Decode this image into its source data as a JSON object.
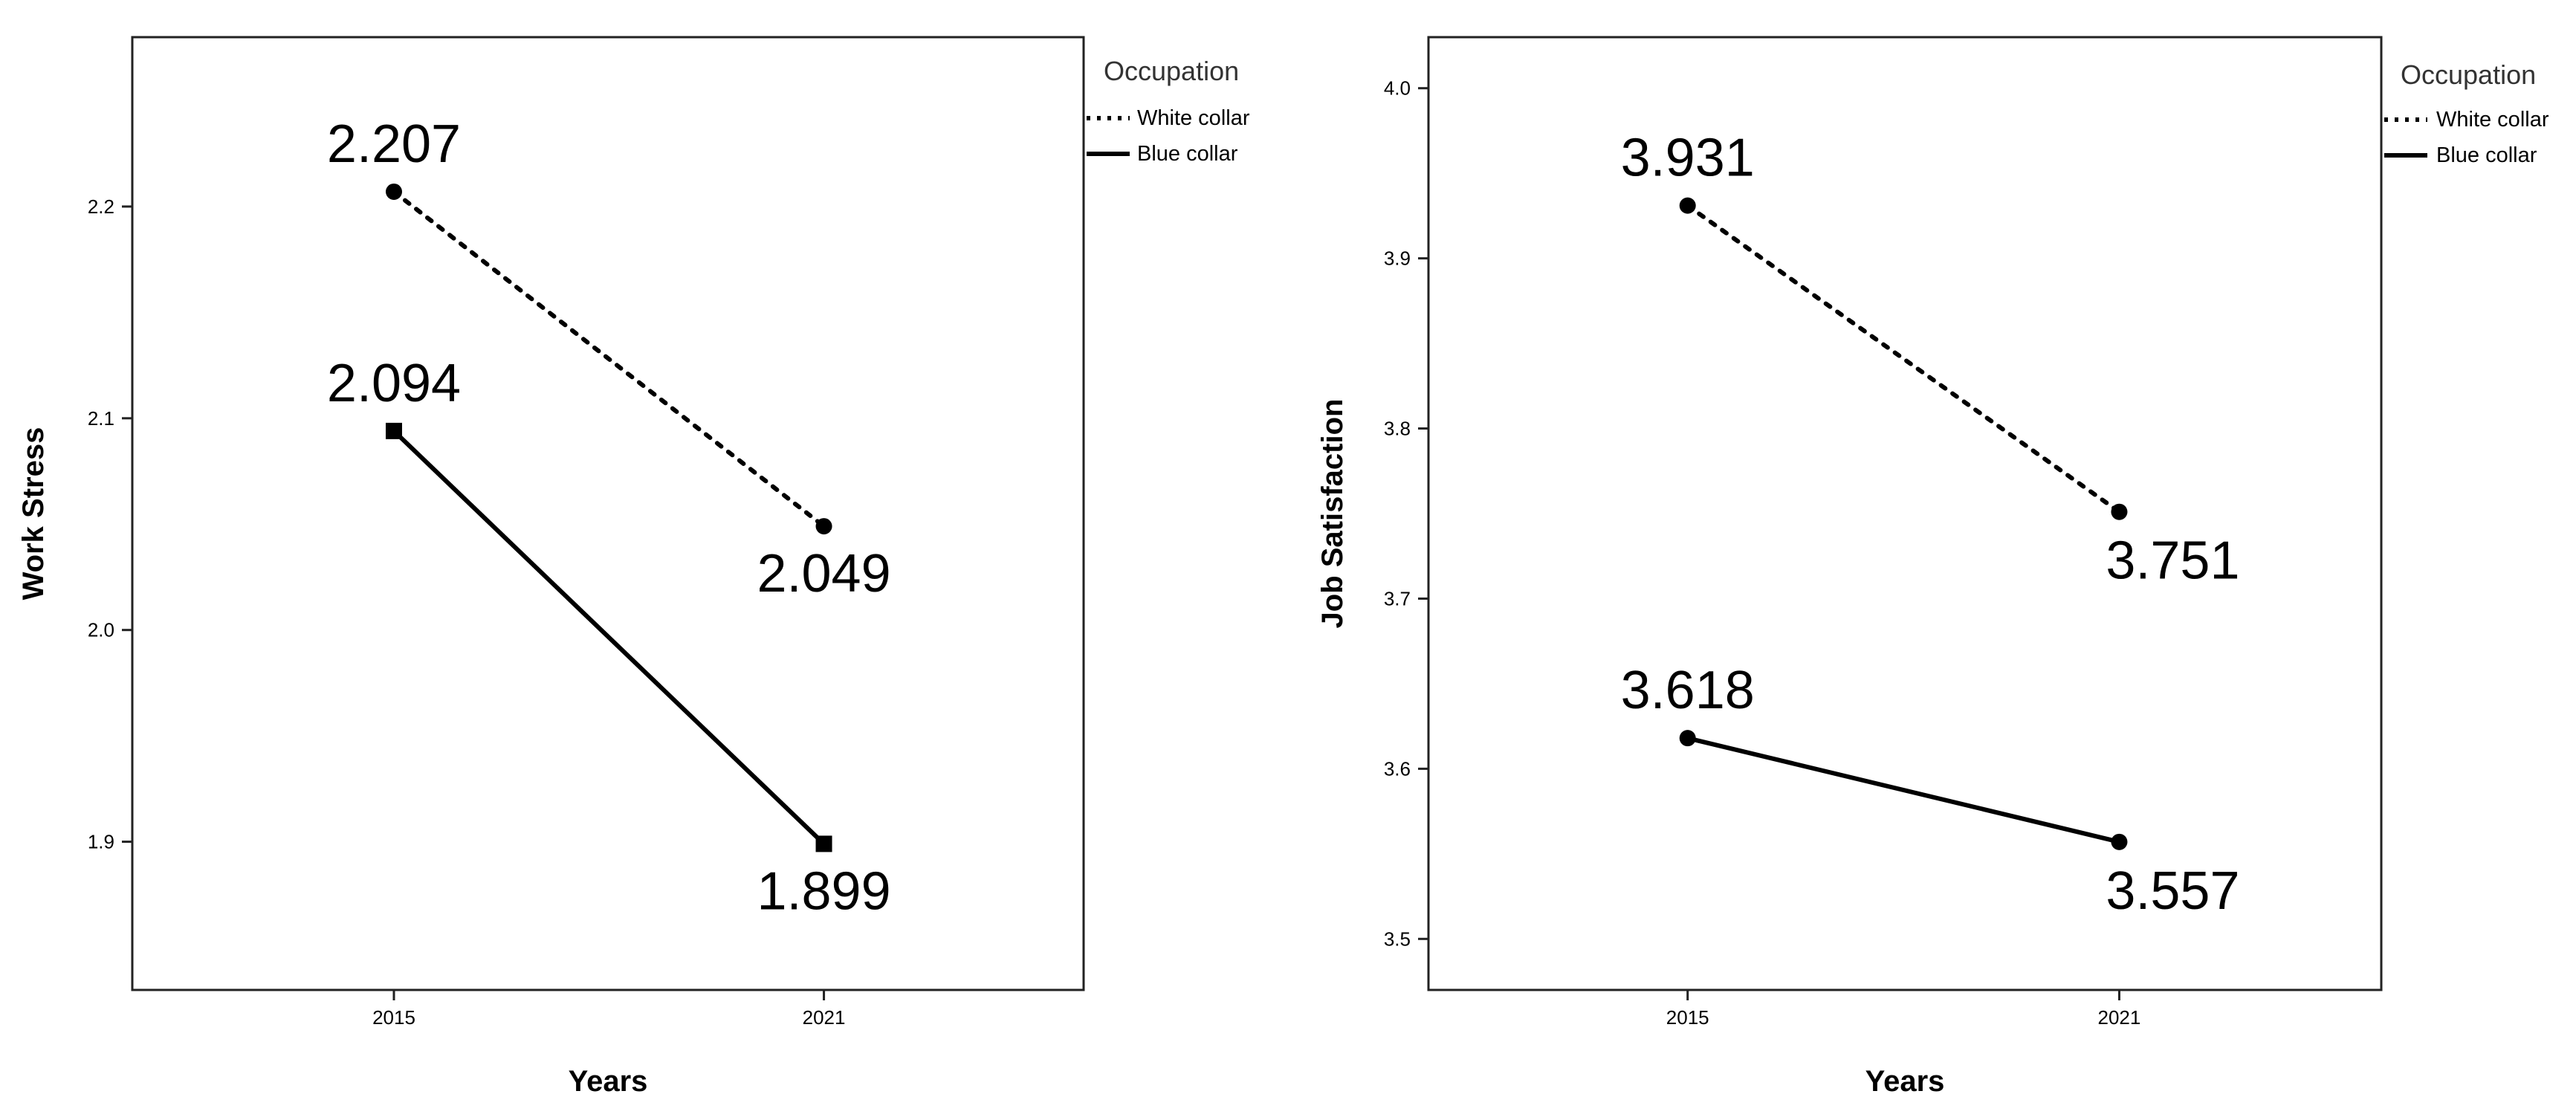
{
  "chart_data": [
    {
      "type": "line",
      "title": "",
      "xlabel": "Years",
      "ylabel": "Work Stress",
      "categories": [
        "2015",
        "2021"
      ],
      "ylim": [
        1.83,
        2.28
      ],
      "yticks": [
        "1.9",
        "2.0",
        "2.1",
        "2.2"
      ],
      "legend": {
        "title": "Occupation",
        "position": "right-outside-top"
      },
      "series": [
        {
          "name": "White collar",
          "style": "dotted",
          "marker": "circle",
          "values": [
            2.207,
            2.049
          ],
          "labels": [
            "2.207",
            "2.049"
          ]
        },
        {
          "name": "Blue collar",
          "style": "solid",
          "marker": "square",
          "values": [
            2.094,
            1.899
          ],
          "labels": [
            "2.094",
            "1.899"
          ]
        }
      ]
    },
    {
      "type": "line",
      "title": "",
      "xlabel": "Years",
      "ylabel": "Job Satisfaction",
      "categories": [
        "2015",
        "2021"
      ],
      "ylim": [
        3.47,
        4.03
      ],
      "yticks": [
        "3.5",
        "3.6",
        "3.7",
        "3.8",
        "3.9",
        "4.0"
      ],
      "legend": {
        "title": "Occupation",
        "position": "right-outside-top"
      },
      "series": [
        {
          "name": "White collar",
          "style": "dotted",
          "marker": "circle",
          "values": [
            3.931,
            3.751
          ],
          "labels": [
            "3.931",
            "3.751"
          ]
        },
        {
          "name": "Blue collar",
          "style": "solid",
          "marker": "circle",
          "values": [
            3.618,
            3.557
          ],
          "labels": [
            "3.618",
            "3.557"
          ]
        }
      ]
    }
  ]
}
